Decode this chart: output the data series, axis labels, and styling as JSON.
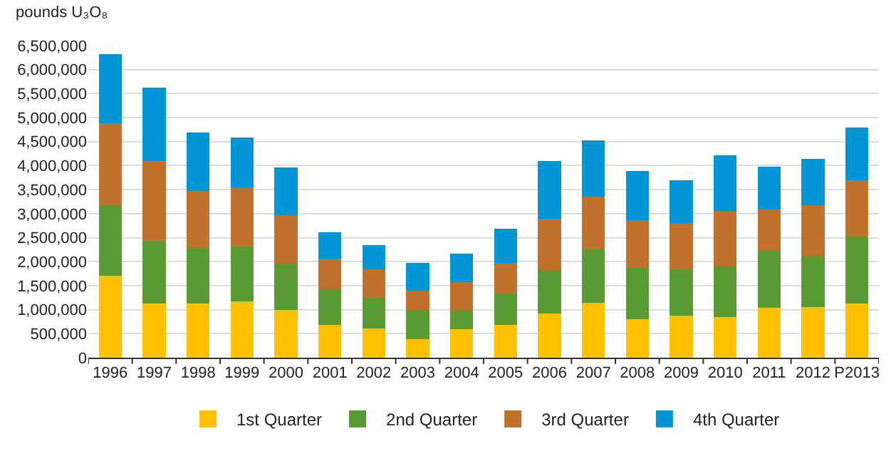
{
  "chart_data": {
    "type": "bar",
    "stacked": true,
    "ylabel": "pounds U₃O₈",
    "categories": [
      "1996",
      "1997",
      "1998",
      "1999",
      "2000",
      "2001",
      "2002",
      "2003",
      "2004",
      "2005",
      "2006",
      "2007",
      "2008",
      "2009",
      "2010",
      "2011",
      "2012",
      "P2013"
    ],
    "series": [
      {
        "name": "1st Quarter",
        "color": "#ffc000",
        "values": [
          1710000,
          1130000,
          1130000,
          1170000,
          990000,
          680000,
          610000,
          380000,
          590000,
          680000,
          920000,
          1150000,
          800000,
          870000,
          850000,
          1040000,
          1060000,
          1130000
        ]
      },
      {
        "name": "2nd Quarter",
        "color": "#5a9a32",
        "values": [
          1470000,
          1310000,
          1150000,
          1140000,
          990000,
          760000,
          640000,
          610000,
          400000,
          650000,
          900000,
          1110000,
          1070000,
          970000,
          1060000,
          1200000,
          1060000,
          1400000
        ]
      },
      {
        "name": "3rd Quarter",
        "color": "#c0722d",
        "values": [
          1700000,
          1660000,
          1200000,
          1230000,
          990000,
          630000,
          590000,
          400000,
          590000,
          650000,
          1080000,
          1090000,
          990000,
          970000,
          1150000,
          850000,
          1060000,
          1170000
        ]
      },
      {
        "name": "4th Quarter",
        "color": "#0096d6",
        "values": [
          1440000,
          1530000,
          1210000,
          1050000,
          990000,
          540000,
          500000,
          590000,
          580000,
          710000,
          1200000,
          1170000,
          1030000,
          880000,
          1160000,
          890000,
          960000,
          1100000
        ]
      }
    ],
    "ylim": [
      0,
      6500000
    ],
    "yticks": [
      0,
      {
        "value": 500000,
        "label": "500,000"
      },
      {
        "value": 1000000,
        "label": "1,000,000"
      },
      {
        "value": 1500000,
        "label": "1,500,000"
      },
      {
        "value": 2000000,
        "label": "2,000,000"
      },
      {
        "value": 2500000,
        "label": "2,500,000"
      },
      {
        "value": 3000000,
        "label": "3,000,000"
      },
      {
        "value": 3500000,
        "label": "3,500,000"
      },
      {
        "value": 4000000,
        "label": "4,000,000"
      },
      {
        "value": 4500000,
        "label": "4,500,000"
      },
      {
        "value": 5000000,
        "label": "5,000,000"
      },
      {
        "value": 5500000,
        "label": "5,500,000"
      },
      {
        "value": 6000000,
        "label": "6,000,000"
      },
      {
        "value": 6500000,
        "label": "6,500,000"
      }
    ],
    "grid": "y",
    "legend": "bottom"
  }
}
